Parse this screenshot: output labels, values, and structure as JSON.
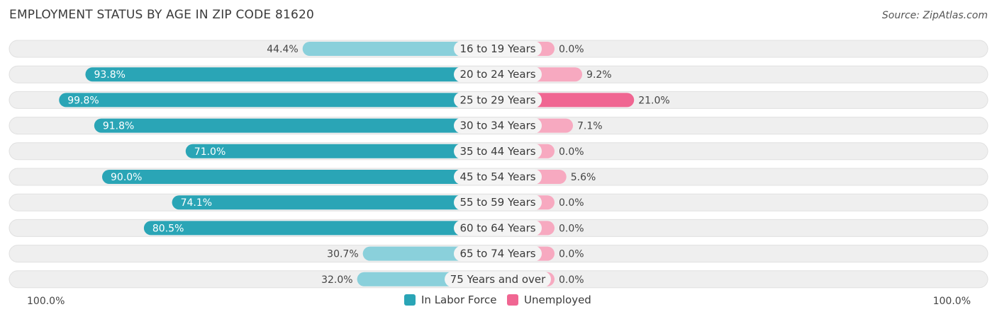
{
  "title": "EMPLOYMENT STATUS BY AGE IN ZIP CODE 81620",
  "source": "Source: ZipAtlas.com",
  "colors": {
    "labor_strong": "#2aa5b6",
    "labor_light": "#8ad0db",
    "unemp_strong": "#f06692",
    "unemp_light": "#f7a9c0",
    "row_bg": "#efefef"
  },
  "chart_data": {
    "type": "bar",
    "orientation": "horizontal-diverging",
    "title": "EMPLOYMENT STATUS BY AGE IN ZIP CODE 81620",
    "categories": [
      "16 to 19 Years",
      "20 to 24 Years",
      "25 to 29 Years",
      "30 to 34 Years",
      "35 to 44 Years",
      "45 to 54 Years",
      "55 to 59 Years",
      "60 to 64 Years",
      "65 to 74 Years",
      "75 Years and over"
    ],
    "series": [
      {
        "name": "In Labor Force",
        "values": [
          44.4,
          93.8,
          99.8,
          91.8,
          71.0,
          90.0,
          74.1,
          80.5,
          30.7,
          32.0
        ],
        "labels": [
          "44.4%",
          "93.8%",
          "99.8%",
          "91.8%",
          "71.0%",
          "90.0%",
          "74.1%",
          "80.5%",
          "30.7%",
          "32.0%"
        ]
      },
      {
        "name": "Unemployed",
        "values": [
          0.0,
          9.2,
          21.0,
          7.1,
          0.0,
          5.6,
          0.0,
          0.0,
          0.0,
          0.0
        ],
        "labels": [
          "0.0%",
          "9.2%",
          "21.0%",
          "7.1%",
          "0.0%",
          "5.6%",
          "0.0%",
          "0.0%",
          "0.0%",
          "0.0%"
        ]
      }
    ],
    "xlim": [
      -100,
      100
    ],
    "axis_left_label": "100.0%",
    "axis_right_label": "100.0%",
    "legend": [
      "In Labor Force",
      "Unemployed"
    ],
    "legend_position": "bottom-center"
  }
}
